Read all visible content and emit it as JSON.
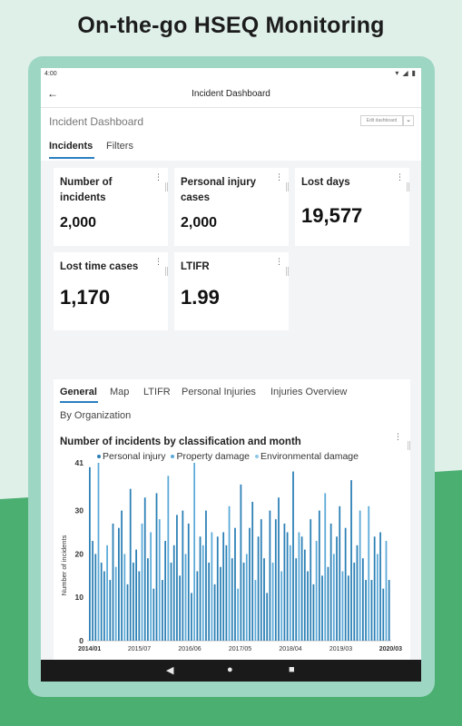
{
  "headline": "On-the-go HSEQ Monitoring",
  "status_bar": {
    "time": "4:00",
    "wifi_icon": "wifi-icon",
    "signal_icon": "signal-icon",
    "battery_icon": "battery-icon"
  },
  "app_bar": {
    "title": "Incident Dashboard",
    "back_icon": "arrow-back-icon"
  },
  "dashboard": {
    "title": "Incident Dashboard",
    "edit_button": "Edit dashboard",
    "tabs": [
      {
        "label": "Incidents",
        "active": true
      },
      {
        "label": "Filters",
        "active": false
      }
    ]
  },
  "kpis": [
    {
      "label": "Number of incidents",
      "value": "2,000"
    },
    {
      "label": "Personal injury cases",
      "value": "2,000"
    },
    {
      "label": "Lost days",
      "value": "19,577"
    },
    {
      "label": "Lost time cases",
      "value": "1,170"
    },
    {
      "label": "LTIFR",
      "value": "1.99"
    }
  ],
  "panel_tabs": [
    {
      "label": "General",
      "active": true
    },
    {
      "label": "Map",
      "active": false
    },
    {
      "label": "LTIFR",
      "active": false
    },
    {
      "label": "Personal Injuries",
      "active": false
    },
    {
      "label": "Injuries Overview",
      "active": false
    },
    {
      "label": "By Organization",
      "active": false
    }
  ],
  "chart_data": {
    "type": "bar",
    "title": "Number of incidents by classification and month",
    "xlabel": "",
    "ylabel": "Number of incidents",
    "ylim": [
      0,
      41
    ],
    "y_ticks": [
      "0",
      "10",
      "20",
      "30",
      "41"
    ],
    "x_ticks": [
      "2014/01",
      "2015/07",
      "2016/06",
      "2017/05",
      "2018/04",
      "2019/03",
      "2020/03"
    ],
    "legend_position": "top",
    "grid": false,
    "series": [
      {
        "name": "Personal injury",
        "color": "#2a7fb5"
      },
      {
        "name": "Property damage",
        "color": "#5aa9d8"
      },
      {
        "name": "Environmental damage",
        "color": "#8fc7e6"
      }
    ],
    "values": [
      40,
      23,
      20,
      41,
      18,
      16,
      22,
      14,
      27,
      17,
      26,
      30,
      20,
      13,
      35,
      18,
      21,
      16,
      27,
      33,
      19,
      25,
      12,
      34,
      28,
      14,
      23,
      38,
      18,
      22,
      29,
      15,
      30,
      20,
      27,
      11,
      41,
      16,
      24,
      22,
      30,
      18,
      25,
      13,
      24,
      17,
      25,
      22,
      31,
      19,
      26,
      12,
      36,
      18,
      20,
      26,
      32,
      14,
      24,
      28,
      19,
      11,
      30,
      18,
      28,
      33,
      16,
      27,
      25,
      22,
      39,
      19,
      25,
      24,
      21,
      16,
      28,
      13,
      23,
      30,
      15,
      34,
      17,
      27,
      20,
      24,
      31,
      16,
      26,
      15,
      37,
      18,
      22,
      30,
      19,
      14,
      31,
      14,
      24,
      20,
      25,
      12,
      23,
      14
    ]
  },
  "nav_bar": {
    "back": "nav-back-icon",
    "home": "nav-home-icon",
    "recents": "nav-recents-icon"
  }
}
